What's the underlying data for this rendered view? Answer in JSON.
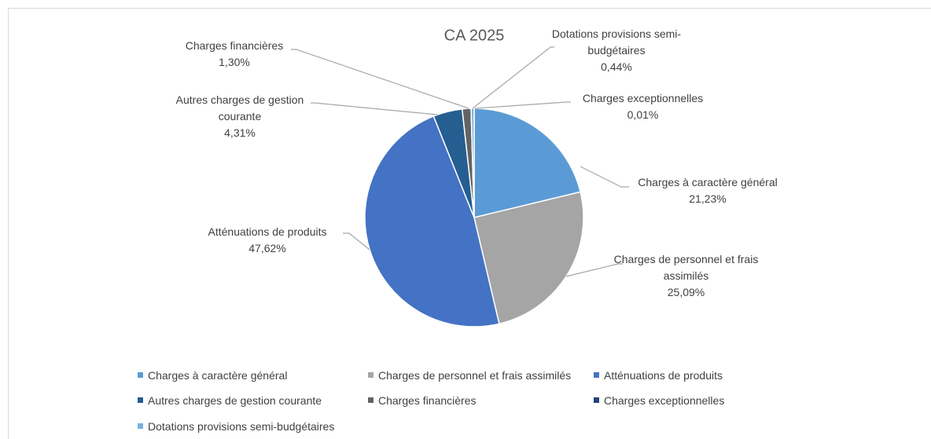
{
  "chart_data": {
    "type": "pie",
    "title": "CA 2025",
    "categories": [
      "Charges à caractère général",
      "Charges de personnel et frais assimilés",
      "Atténuations de produits",
      "Autres charges de gestion courante",
      "Charges financières",
      "Charges exceptionnelles",
      "Dotations provisions semi-budgétaires"
    ],
    "values": [
      21.23,
      25.09,
      47.62,
      4.31,
      1.3,
      0.01,
      0.44
    ],
    "value_labels": [
      "21,23%",
      "25,09%",
      "47,62%",
      "4,31%",
      "1,30%",
      "0,01%",
      "0,44%"
    ],
    "colors": [
      "#5b9bd5",
      "#a5a5a5",
      "#4472c4",
      "#255e91",
      "#636363",
      "#264478",
      "#7cafdd"
    ],
    "legend": "bottom"
  }
}
